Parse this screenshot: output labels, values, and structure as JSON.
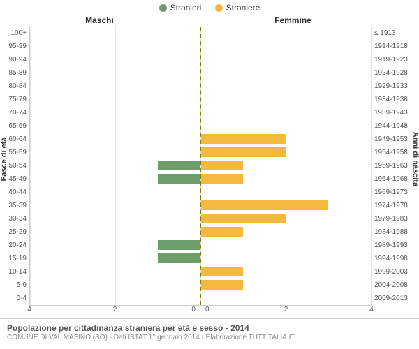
{
  "legend": {
    "male": {
      "label": "Stranieri",
      "color": "#6b9e6b"
    },
    "female": {
      "label": "Straniere",
      "color": "#f5b940"
    }
  },
  "headers": {
    "left": "Maschi",
    "right": "Femmine"
  },
  "y_title_left": "Fasce di età",
  "y_title_right": "Anni di nascita",
  "x_axis": {
    "max": 4,
    "ticks": [
      4,
      2,
      0,
      0,
      2,
      4
    ],
    "tick_pos_pct": [
      0,
      25,
      48,
      52,
      75,
      100
    ]
  },
  "rows": [
    {
      "age": "100+",
      "birth": "≤ 1913",
      "m": 0,
      "f": 0
    },
    {
      "age": "95-99",
      "birth": "1914-1918",
      "m": 0,
      "f": 0
    },
    {
      "age": "90-94",
      "birth": "1919-1923",
      "m": 0,
      "f": 0
    },
    {
      "age": "85-89",
      "birth": "1924-1928",
      "m": 0,
      "f": 0
    },
    {
      "age": "80-84",
      "birth": "1929-1933",
      "m": 0,
      "f": 0
    },
    {
      "age": "75-79",
      "birth": "1934-1938",
      "m": 0,
      "f": 0
    },
    {
      "age": "70-74",
      "birth": "1939-1943",
      "m": 0,
      "f": 0
    },
    {
      "age": "65-69",
      "birth": "1944-1948",
      "m": 0,
      "f": 0
    },
    {
      "age": "60-64",
      "birth": "1949-1953",
      "m": 0,
      "f": 2
    },
    {
      "age": "55-59",
      "birth": "1954-1958",
      "m": 0,
      "f": 2
    },
    {
      "age": "50-54",
      "birth": "1959-1963",
      "m": 1,
      "f": 1
    },
    {
      "age": "45-49",
      "birth": "1964-1968",
      "m": 1,
      "f": 1
    },
    {
      "age": "40-44",
      "birth": "1969-1973",
      "m": 0,
      "f": 0
    },
    {
      "age": "35-39",
      "birth": "1974-1978",
      "m": 0,
      "f": 3
    },
    {
      "age": "30-34",
      "birth": "1979-1983",
      "m": 0,
      "f": 2
    },
    {
      "age": "25-29",
      "birth": "1984-1988",
      "m": 0,
      "f": 1
    },
    {
      "age": "20-24",
      "birth": "1989-1993",
      "m": 1,
      "f": 0
    },
    {
      "age": "15-19",
      "birth": "1994-1998",
      "m": 1,
      "f": 0
    },
    {
      "age": "10-14",
      "birth": "1999-2003",
      "m": 0,
      "f": 1
    },
    {
      "age": "5-9",
      "birth": "2004-2008",
      "m": 0,
      "f": 1
    },
    {
      "age": "0-4",
      "birth": "2009-2013",
      "m": 0,
      "f": 0
    }
  ],
  "caption": {
    "title": "Popolazione per cittadinanza straniera per età e sesso - 2014",
    "sub": "COMUNE DI VAL MASINO (SO) - Dati ISTAT 1° gennaio 2014 - Elaborazione TUTTITALIA.IT"
  },
  "style": {
    "grid_color": "#e5e5e5",
    "center_line_color": "#808000",
    "background": "#ffffff"
  }
}
